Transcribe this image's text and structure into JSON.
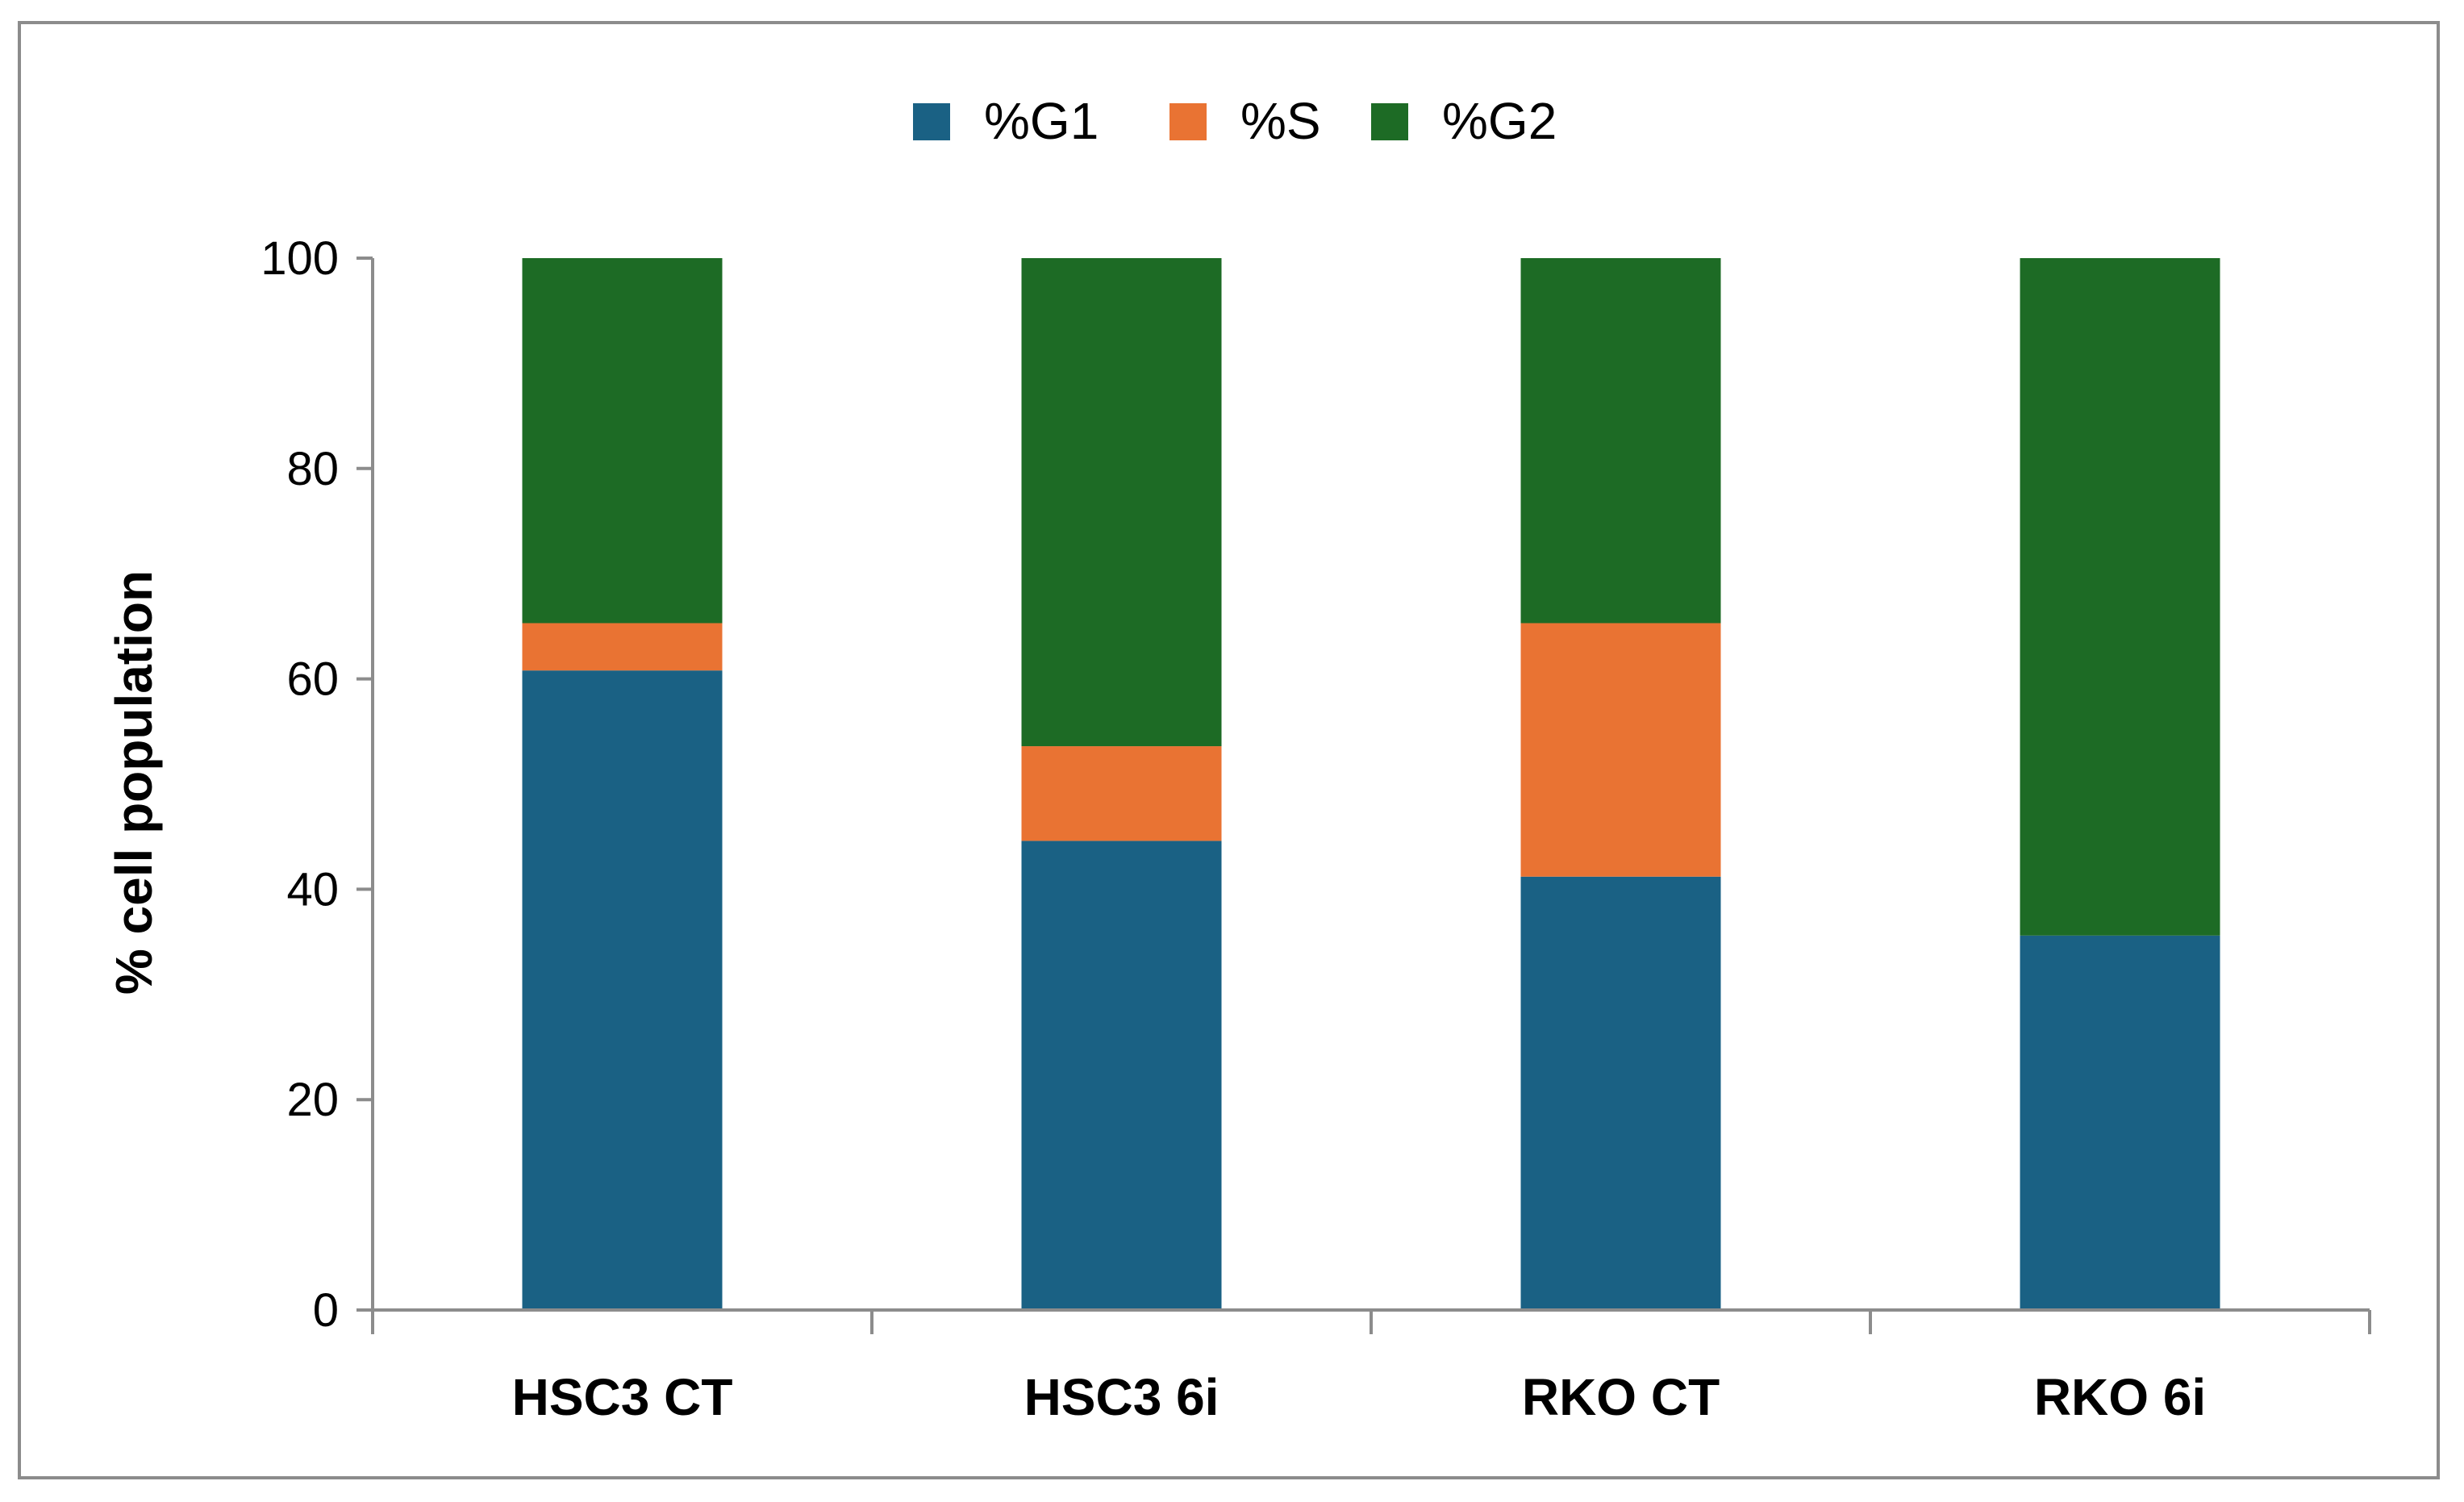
{
  "chart_data": {
    "type": "bar",
    "stacked": true,
    "categories": [
      "HSC3 CT",
      "HSC3 6i",
      "RKO CT",
      "RKO 6i"
    ],
    "series": [
      {
        "name": "%G1",
        "color": "#1a6184",
        "values": [
          60.8,
          44.6,
          41.2,
          35.6
        ]
      },
      {
        "name": "%S",
        "color": "#e97333",
        "values": [
          4.5,
          9.0,
          24.1,
          0
        ]
      },
      {
        "name": "%G2",
        "color": "#1d6b25",
        "values": [
          34.7,
          46.4,
          34.7,
          64.4
        ]
      }
    ],
    "title": "",
    "xlabel": "",
    "ylabel": "% cell population",
    "ylim": [
      0,
      100
    ],
    "yticks": [
      0,
      20,
      40,
      60,
      80,
      100
    ],
    "grid": false,
    "legend_position": "top-center"
  }
}
